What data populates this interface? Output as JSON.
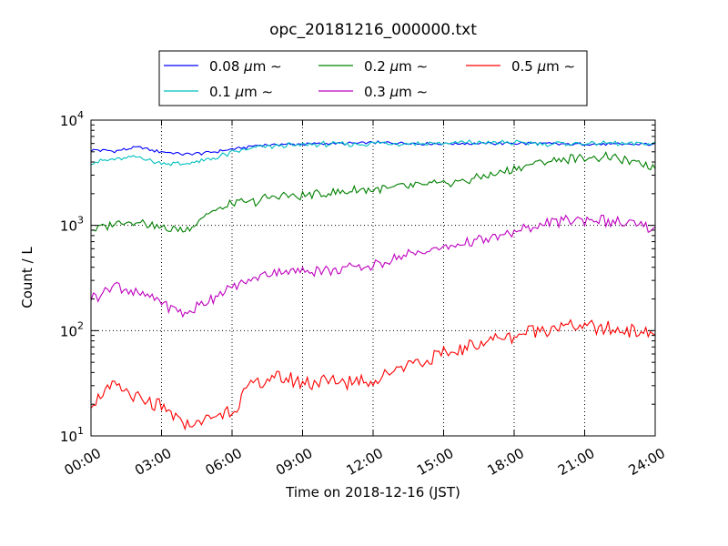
{
  "chart_data": {
    "type": "line",
    "title": "opc_20181216_000000.txt",
    "xlabel": "Time on 2018-12-16 (JST)",
    "ylabel": "Count / L",
    "y_scale": "log",
    "ylim": [
      10,
      10000
    ],
    "xlim": [
      "2018-12-16T00:00",
      "2018-12-17T00:00"
    ],
    "x_ticks": [
      "00:00",
      "03:00",
      "06:00",
      "09:00",
      "12:00",
      "15:00",
      "18:00",
      "21:00",
      "24:00"
    ],
    "x_tick_hours": [
      0,
      3,
      6,
      9,
      12,
      15,
      18,
      21,
      24
    ],
    "y_ticks": [
      {
        "base": "10",
        "exp": "1",
        "value": 10
      },
      {
        "base": "10",
        "exp": "2",
        "value": 100
      },
      {
        "base": "10",
        "exp": "3",
        "value": 1000
      },
      {
        "base": "10",
        "exp": "4",
        "value": 10000
      }
    ],
    "grid": true,
    "legend_position": "top",
    "x": [
      "00:00",
      "01:00",
      "02:00",
      "03:00",
      "04:00",
      "05:00",
      "06:00",
      "07:00",
      "08:00",
      "09:00",
      "10:00",
      "11:00",
      "12:00",
      "13:00",
      "14:00",
      "15:00",
      "16:00",
      "17:00",
      "18:00",
      "19:00",
      "20:00",
      "21:00",
      "22:00",
      "23:00",
      "24:00"
    ],
    "x_hours": [
      0,
      1,
      2,
      3,
      4,
      5,
      6,
      7,
      8,
      9,
      10,
      11,
      12,
      13,
      14,
      15,
      16,
      17,
      18,
      19,
      20,
      21,
      22,
      23,
      24
    ],
    "series": [
      {
        "name": "0.08",
        "unit": "μm",
        "suffix": "∼",
        "color": "#0000ff",
        "values": [
          5200,
          5100,
          5500,
          5000,
          4700,
          4900,
          5300,
          5700,
          5900,
          5900,
          6000,
          6000,
          6100,
          6100,
          6000,
          6000,
          6000,
          6000,
          6000,
          6000,
          5900,
          5900,
          5900,
          5900,
          5900
        ]
      },
      {
        "name": "0.1",
        "unit": "μm",
        "suffix": "∼",
        "color": "#00bfbf",
        "values": [
          4000,
          4200,
          4500,
          3900,
          3800,
          4200,
          4900,
          5500,
          5700,
          5800,
          5900,
          5900,
          6000,
          6000,
          6000,
          6000,
          6100,
          6100,
          6100,
          6000,
          6000,
          6000,
          6000,
          6000,
          6000
        ]
      },
      {
        "name": "0.2",
        "unit": "μm",
        "suffix": "∼",
        "color": "#008000",
        "values": [
          900,
          1050,
          1100,
          950,
          900,
          1300,
          1600,
          1700,
          1900,
          1900,
          2000,
          2100,
          2200,
          2300,
          2400,
          2500,
          2700,
          3000,
          3400,
          3900,
          4200,
          4400,
          4400,
          4000,
          3600
        ]
      },
      {
        "name": "0.3",
        "unit": "μm",
        "suffix": "∼",
        "color": "#bf00bf",
        "values": [
          200,
          270,
          220,
          190,
          140,
          200,
          250,
          320,
          370,
          370,
          380,
          390,
          420,
          500,
          560,
          620,
          680,
          750,
          860,
          1000,
          1100,
          1150,
          1100,
          1000,
          900
        ]
      },
      {
        "name": "0.5",
        "unit": "μm",
        "suffix": "∼",
        "color": "#ff0000",
        "values": [
          20,
          30,
          22,
          18,
          13,
          14,
          18,
          32,
          35,
          32,
          32,
          33,
          33,
          45,
          52,
          58,
          70,
          82,
          90,
          105,
          112,
          110,
          105,
          100,
          92
        ]
      }
    ]
  }
}
